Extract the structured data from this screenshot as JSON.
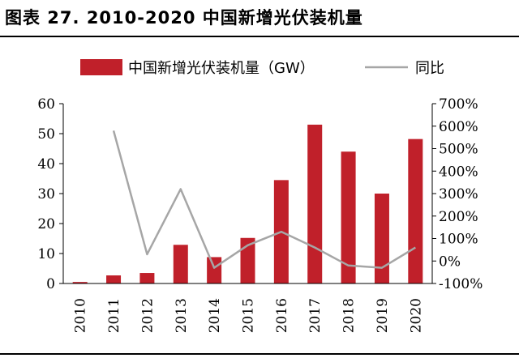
{
  "figure": {
    "title": "图表 27. 2010-2020 中国新增光伏装机量"
  },
  "chart_data": {
    "type": "bar",
    "categories": [
      "2010",
      "2011",
      "2012",
      "2013",
      "2014",
      "2015",
      "2016",
      "2017",
      "2018",
      "2019",
      "2020"
    ],
    "series": [
      {
        "name": "中国新增光伏装机量（GW）",
        "type": "bar",
        "axis": "left",
        "color": "#C0202A",
        "values": [
          0.5,
          2.7,
          3.5,
          12.9,
          8.8,
          15.2,
          34.5,
          53.0,
          44.0,
          30.0,
          48.2
        ]
      },
      {
        "name": "同比",
        "type": "line",
        "axis": "right",
        "color": "#A6A6A6",
        "values": [
          null,
          580,
          30,
          320,
          -30,
          70,
          130,
          60,
          -20,
          -30,
          60
        ]
      }
    ],
    "y_left": {
      "min": 0,
      "max": 60,
      "ticks": [
        0,
        10,
        20,
        30,
        40,
        50,
        60
      ],
      "tick_labels": [
        "0",
        "10",
        "20",
        "30",
        "40",
        "50",
        "60"
      ]
    },
    "y_right": {
      "min": -100,
      "max": 700,
      "ticks": [
        -100,
        0,
        100,
        200,
        300,
        400,
        500,
        600,
        700
      ],
      "tick_labels": [
        "-100%",
        "0%",
        "100%",
        "200%",
        "300%",
        "400%",
        "500%",
        "600%",
        "700%"
      ]
    },
    "xlabel": "",
    "ylabel": "",
    "grid": false,
    "legend": "top-center"
  }
}
